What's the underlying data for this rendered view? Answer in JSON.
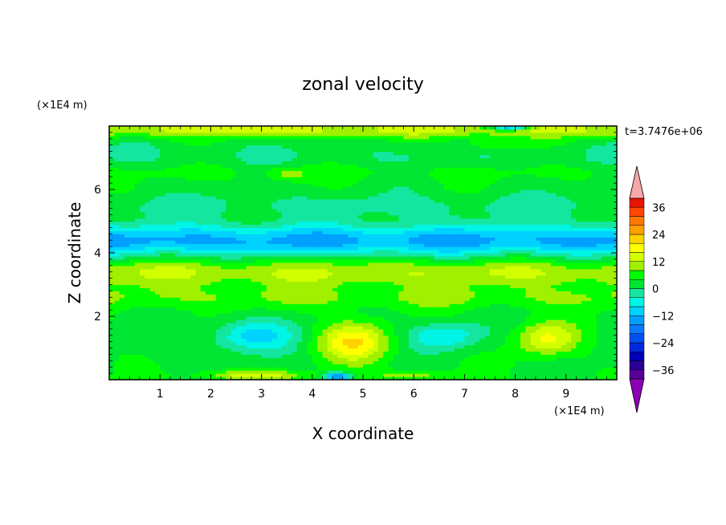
{
  "chart_data": {
    "type": "heatmap",
    "title": "zonal velocity",
    "xlabel": "X coordinate",
    "ylabel": "Z coordinate",
    "x_unit": "(×1E4 m)",
    "y_unit": "(×1E4 m)",
    "time_label": "t=3.7476e+06",
    "xlim": [
      0,
      10
    ],
    "ylim": [
      0,
      8
    ],
    "xticks": [
      1,
      2,
      3,
      4,
      5,
      6,
      7,
      8,
      9
    ],
    "yticks": [
      2,
      4,
      6
    ],
    "colorbar": {
      "levels": [
        -40,
        -36,
        -32,
        -28,
        -24,
        -20,
        -16,
        -12,
        -8,
        -4,
        0,
        4,
        8,
        12,
        16,
        20,
        24,
        28,
        32,
        36,
        40
      ],
      "tick_labels": [
        36,
        24,
        12,
        0,
        -12,
        -24,
        -36
      ],
      "colors": [
        "#5a0096",
        "#2b0096",
        "#0000b4",
        "#0028dc",
        "#0050f0",
        "#0a78ff",
        "#00a0ff",
        "#00d2ff",
        "#00f5e6",
        "#14e6a0",
        "#00e632",
        "#00ff00",
        "#a0f000",
        "#d2ff00",
        "#ffff00",
        "#ffd200",
        "#ffa000",
        "#ff7800",
        "#ff4600",
        "#e61400"
      ],
      "under_color": "#8c00b4",
      "over_color": "#f7a8a8"
    }
  }
}
